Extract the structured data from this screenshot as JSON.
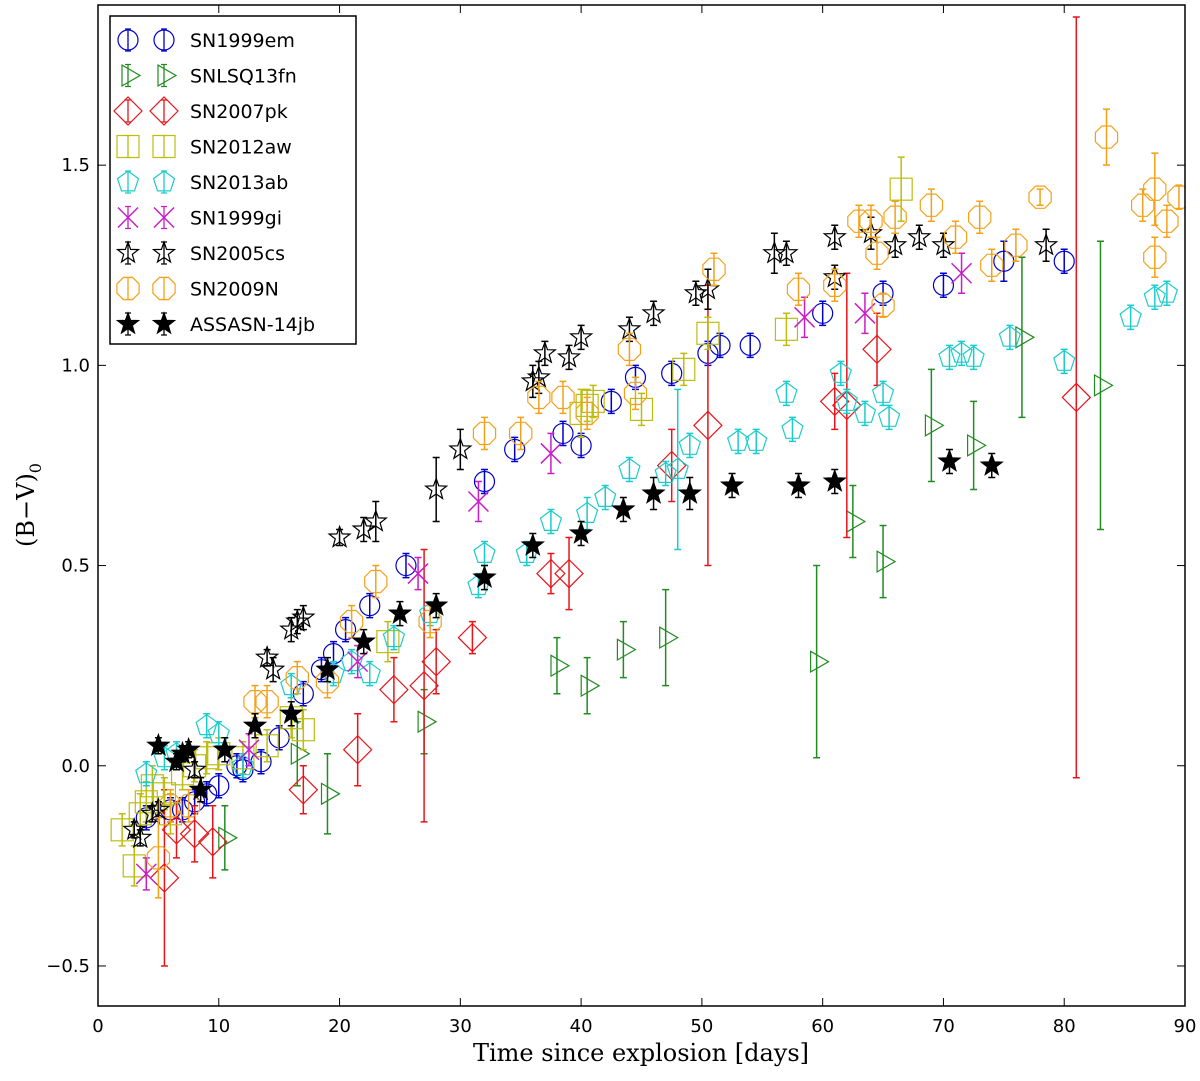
{
  "chart_data": {
    "type": "scatter",
    "xlabel": "Time since explosion [days]",
    "ylabel_main": "(B−V)",
    "ylabel_sub": "0",
    "xlim": [
      0,
      90
    ],
    "ylim": [
      -0.6,
      1.9
    ],
    "xticks": [
      0,
      10,
      20,
      30,
      40,
      50,
      60,
      70,
      80,
      90
    ],
    "yticks": [
      -0.5,
      0.0,
      0.5,
      1.0,
      1.5
    ],
    "ytick_labels": [
      "−0.5",
      "0.0",
      "0.5",
      "1.0",
      "1.5"
    ],
    "legend_position": "top-left",
    "series": [
      {
        "name": "SN1999em",
        "color": "#0000cc",
        "marker": "circle",
        "points": [
          [
            4,
            -0.13,
            0.03
          ],
          [
            6,
            -0.11,
            0.03
          ],
          [
            7,
            -0.11,
            0.03
          ],
          [
            8,
            -0.09,
            0.03
          ],
          [
            9,
            -0.07,
            0.03
          ],
          [
            10,
            -0.05,
            0.03
          ],
          [
            11.5,
            0.0,
            0.03
          ],
          [
            12,
            -0.01,
            0.03
          ],
          [
            13.5,
            0.01,
            0.03
          ],
          [
            15,
            0.07,
            0.03
          ],
          [
            17,
            0.18,
            0.03
          ],
          [
            18.5,
            0.24,
            0.03
          ],
          [
            19.5,
            0.28,
            0.03
          ],
          [
            20.5,
            0.34,
            0.03
          ],
          [
            22.5,
            0.4,
            0.03
          ],
          [
            25.5,
            0.5,
            0.03
          ],
          [
            32,
            0.71,
            0.03
          ],
          [
            34.5,
            0.79,
            0.03
          ],
          [
            38.5,
            0.83,
            0.03
          ],
          [
            40,
            0.8,
            0.03
          ],
          [
            42.5,
            0.91,
            0.03
          ],
          [
            44.5,
            0.97,
            0.03
          ],
          [
            47.5,
            0.98,
            0.03
          ],
          [
            50.5,
            1.03,
            0.03
          ],
          [
            51.5,
            1.05,
            0.03
          ],
          [
            54,
            1.05,
            0.03
          ],
          [
            60,
            1.13,
            0.03
          ],
          [
            65,
            1.18,
            0.03
          ],
          [
            70,
            1.2,
            0.03
          ],
          [
            75,
            1.26,
            0.05
          ],
          [
            80,
            1.26,
            0.03
          ]
        ]
      },
      {
        "name": "SNLSQ13fn",
        "color": "#228b22",
        "marker": "triangle-right",
        "points": [
          [
            10.5,
            -0.18,
            0.08
          ],
          [
            16.5,
            0.03,
            0.08
          ],
          [
            19,
            -0.07,
            0.1
          ],
          [
            27,
            0.11,
            0.08
          ],
          [
            38,
            0.25,
            0.07
          ],
          [
            40.5,
            0.2,
            0.07
          ],
          [
            43.5,
            0.29,
            0.07
          ],
          [
            47,
            0.32,
            0.12
          ],
          [
            59.5,
            0.26,
            0.24
          ],
          [
            62.5,
            0.61,
            0.09
          ],
          [
            65,
            0.51,
            0.09
          ],
          [
            69,
            0.85,
            0.14
          ],
          [
            72.5,
            0.8,
            0.11
          ],
          [
            76.5,
            1.07,
            0.2
          ],
          [
            83,
            0.95,
            0.36
          ]
        ]
      },
      {
        "name": "SN2007pk",
        "color": "#e8141a",
        "marker": "diamond",
        "points": [
          [
            5.5,
            -0.28,
            0.22
          ],
          [
            6.5,
            -0.16,
            0.07
          ],
          [
            8,
            -0.17,
            0.07
          ],
          [
            9.5,
            -0.19,
            0.09
          ],
          [
            17,
            -0.06,
            0.06
          ],
          [
            21.5,
            0.04,
            0.09
          ],
          [
            24.5,
            0.19,
            0.08
          ],
          [
            27,
            0.2,
            0.34
          ],
          [
            28,
            0.26,
            0.08
          ],
          [
            31,
            0.32,
            0.04
          ],
          [
            37.5,
            0.48,
            0.05
          ],
          [
            39,
            0.48,
            0.09
          ],
          [
            47.5,
            0.75,
            0.09
          ],
          [
            50.5,
            0.85,
            0.35
          ],
          [
            61,
            0.91,
            0.07
          ],
          [
            62,
            0.9,
            0.33
          ],
          [
            64.5,
            1.04,
            0.09
          ],
          [
            81,
            0.92,
            0.95
          ]
        ]
      },
      {
        "name": "SN2012aw",
        "color": "#bdbd10",
        "marker": "square",
        "points": [
          [
            2,
            -0.16,
            0.04
          ],
          [
            3,
            -0.25,
            0.05
          ],
          [
            3.5,
            -0.12,
            0.05
          ],
          [
            4,
            -0.09,
            0.05
          ],
          [
            4.5,
            -0.05,
            0.05
          ],
          [
            5.5,
            -0.07,
            0.04
          ],
          [
            6,
            -0.12,
            0.05
          ],
          [
            7,
            -0.02,
            0.04
          ],
          [
            8,
            0.0,
            0.04
          ],
          [
            9,
            0.02,
            0.04
          ],
          [
            10,
            0.03,
            0.04
          ],
          [
            12,
            0.02,
            0.04
          ],
          [
            14,
            0.05,
            0.04
          ],
          [
            16,
            0.12,
            0.05
          ],
          [
            17,
            0.09,
            0.05
          ],
          [
            24,
            0.31,
            0.05
          ],
          [
            40,
            0.88,
            0.06
          ],
          [
            40.5,
            0.9,
            0.04
          ],
          [
            41,
            0.91,
            0.04
          ],
          [
            45,
            0.89,
            0.04
          ],
          [
            48.5,
            0.99,
            0.04
          ],
          [
            50.5,
            1.08,
            0.04
          ],
          [
            57,
            1.09,
            0.04
          ],
          [
            66.5,
            1.44,
            0.08
          ]
        ]
      },
      {
        "name": "SN2013ab",
        "color": "#1ccccc",
        "marker": "pentagon",
        "points": [
          [
            4,
            -0.02,
            0.03
          ],
          [
            5.5,
            0.02,
            0.03
          ],
          [
            6.5,
            0.03,
            0.03
          ],
          [
            9,
            0.1,
            0.03
          ],
          [
            10,
            0.08,
            0.03
          ],
          [
            12,
            0.0,
            0.03
          ],
          [
            16,
            0.2,
            0.03
          ],
          [
            19.5,
            0.23,
            0.03
          ],
          [
            21,
            0.26,
            0.03
          ],
          [
            22.5,
            0.23,
            0.03
          ],
          [
            24.5,
            0.32,
            0.03
          ],
          [
            27.5,
            0.38,
            0.03
          ],
          [
            31.5,
            0.45,
            0.03
          ],
          [
            32,
            0.53,
            0.03
          ],
          [
            35.5,
            0.53,
            0.03
          ],
          [
            37.5,
            0.61,
            0.03
          ],
          [
            40.5,
            0.63,
            0.04
          ],
          [
            42,
            0.67,
            0.03
          ],
          [
            44,
            0.74,
            0.03
          ],
          [
            47,
            0.73,
            0.03
          ],
          [
            48,
            0.74,
            0.2
          ],
          [
            49,
            0.8,
            0.03
          ],
          [
            53,
            0.81,
            0.03
          ],
          [
            54.5,
            0.81,
            0.03
          ],
          [
            57,
            0.93,
            0.03
          ],
          [
            57.5,
            0.84,
            0.03
          ],
          [
            61.5,
            0.98,
            0.03
          ],
          [
            62,
            0.91,
            0.03
          ],
          [
            63.5,
            0.88,
            0.03
          ],
          [
            65,
            0.93,
            0.03
          ],
          [
            65.5,
            0.87,
            0.03
          ],
          [
            70.5,
            1.02,
            0.03
          ],
          [
            71.5,
            1.03,
            0.03
          ],
          [
            72.5,
            1.02,
            0.03
          ],
          [
            75.5,
            1.07,
            0.03
          ],
          [
            80,
            1.01,
            0.03
          ],
          [
            85.5,
            1.12,
            0.03
          ],
          [
            87.5,
            1.17,
            0.03
          ],
          [
            88.5,
            1.18,
            0.03
          ]
        ]
      },
      {
        "name": "SN1999gi",
        "color": "#c71fc7",
        "marker": "x-cross",
        "points": [
          [
            4,
            -0.27,
            0.04
          ],
          [
            12.5,
            0.04,
            0.04
          ],
          [
            21.5,
            0.26,
            0.04
          ],
          [
            26.5,
            0.48,
            0.04
          ],
          [
            31.5,
            0.66,
            0.05
          ],
          [
            37.5,
            0.78,
            0.05
          ],
          [
            58.5,
            1.12,
            0.05
          ],
          [
            63.5,
            1.13,
            0.05
          ],
          [
            71.5,
            1.23,
            0.05
          ]
        ]
      },
      {
        "name": "SN2005cs",
        "color": "#000000",
        "marker": "star-open",
        "points": [
          [
            3,
            -0.16,
            0.02
          ],
          [
            3.5,
            -0.18,
            0.02
          ],
          [
            4.5,
            -0.12,
            0.02
          ],
          [
            5,
            -0.11,
            0.02
          ],
          [
            8,
            -0.01,
            0.02
          ],
          [
            14,
            0.27,
            0.02
          ],
          [
            14.5,
            0.24,
            0.03
          ],
          [
            16,
            0.34,
            0.03
          ],
          [
            16.5,
            0.36,
            0.03
          ],
          [
            17,
            0.37,
            0.03
          ],
          [
            20,
            0.57,
            0.02
          ],
          [
            22,
            0.59,
            0.03
          ],
          [
            23,
            0.61,
            0.05
          ],
          [
            28,
            0.69,
            0.08
          ],
          [
            30,
            0.79,
            0.05
          ],
          [
            36,
            0.96,
            0.04
          ],
          [
            36.5,
            0.97,
            0.04
          ],
          [
            37,
            1.03,
            0.03
          ],
          [
            39,
            1.02,
            0.03
          ],
          [
            40,
            1.07,
            0.03
          ],
          [
            44,
            1.09,
            0.03
          ],
          [
            46,
            1.13,
            0.03
          ],
          [
            49.5,
            1.18,
            0.03
          ],
          [
            50.5,
            1.19,
            0.05
          ],
          [
            56,
            1.28,
            0.05
          ],
          [
            57,
            1.28,
            0.03
          ],
          [
            61,
            1.32,
            0.03
          ],
          [
            61,
            1.22,
            0.03
          ],
          [
            64,
            1.33,
            0.04
          ],
          [
            66,
            1.3,
            0.03
          ],
          [
            68,
            1.32,
            0.03
          ],
          [
            70,
            1.3,
            0.03
          ],
          [
            78.5,
            1.3,
            0.04
          ]
        ]
      },
      {
        "name": "SN2009N",
        "color": "#f4a11a",
        "marker": "octagon",
        "points": [
          [
            5,
            -0.23,
            0.1
          ],
          [
            6,
            -0.1,
            0.04
          ],
          [
            7.5,
            -0.1,
            0.04
          ],
          [
            13,
            0.16,
            0.04
          ],
          [
            14,
            0.16,
            0.04
          ],
          [
            16.5,
            0.22,
            0.04
          ],
          [
            19,
            0.21,
            0.04
          ],
          [
            21,
            0.36,
            0.04
          ],
          [
            23,
            0.46,
            0.04
          ],
          [
            27.5,
            0.36,
            0.04
          ],
          [
            32,
            0.83,
            0.04
          ],
          [
            35,
            0.83,
            0.04
          ],
          [
            36.5,
            0.92,
            0.04
          ],
          [
            38.5,
            0.92,
            0.04
          ],
          [
            40.5,
            0.88,
            0.04
          ],
          [
            44,
            1.04,
            0.04
          ],
          [
            44.5,
            0.93,
            0.04
          ],
          [
            51,
            1.24,
            0.04
          ],
          [
            58,
            1.19,
            0.04
          ],
          [
            61,
            1.2,
            0.04
          ],
          [
            63,
            1.36,
            0.04
          ],
          [
            64,
            1.36,
            0.04
          ],
          [
            64.5,
            1.28,
            0.04
          ],
          [
            65,
            1.15,
            0.03
          ],
          [
            66,
            1.37,
            0.04
          ],
          [
            69,
            1.4,
            0.04
          ],
          [
            71,
            1.32,
            0.04
          ],
          [
            73,
            1.37,
            0.04
          ],
          [
            74,
            1.25,
            0.04
          ],
          [
            76,
            1.3,
            0.04
          ],
          [
            78,
            1.42,
            0.02
          ],
          [
            83.5,
            1.57,
            0.07
          ],
          [
            86.5,
            1.4,
            0.04
          ],
          [
            87.5,
            1.44,
            0.09
          ],
          [
            88.5,
            1.36,
            0.04
          ],
          [
            87.5,
            1.27,
            0.05
          ],
          [
            89.5,
            1.42,
            0.03
          ]
        ]
      },
      {
        "name": "ASSASN-14jb",
        "color": "#000000",
        "marker": "star-filled",
        "points": [
          [
            5,
            0.05,
            0.02
          ],
          [
            6.5,
            0.01,
            0.02
          ],
          [
            7,
            0.03,
            0.02
          ],
          [
            7.5,
            0.04,
            0.02
          ],
          [
            8.5,
            -0.06,
            0.03
          ],
          [
            10.5,
            0.04,
            0.03
          ],
          [
            13,
            0.1,
            0.03
          ],
          [
            16,
            0.13,
            0.03
          ],
          [
            19,
            0.24,
            0.03
          ],
          [
            22,
            0.31,
            0.03
          ],
          [
            25,
            0.38,
            0.03
          ],
          [
            28,
            0.4,
            0.03
          ],
          [
            32,
            0.47,
            0.03
          ],
          [
            36,
            0.55,
            0.03
          ],
          [
            40,
            0.58,
            0.03
          ],
          [
            43.5,
            0.64,
            0.03
          ],
          [
            46,
            0.68,
            0.04
          ],
          [
            49,
            0.68,
            0.04
          ],
          [
            52.5,
            0.7,
            0.03
          ],
          [
            58,
            0.7,
            0.03
          ],
          [
            61,
            0.71,
            0.03
          ],
          [
            70.5,
            0.76,
            0.03
          ],
          [
            74,
            0.75,
            0.03
          ]
        ]
      }
    ]
  }
}
